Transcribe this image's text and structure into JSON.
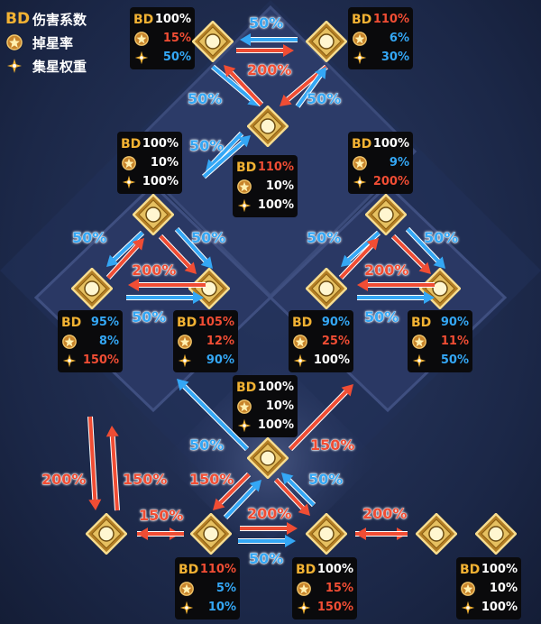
{
  "legend": {
    "bd_label": "BD",
    "damage_label": "伤害系数",
    "drop_label": "掉星率",
    "gather_label": "集星权重"
  },
  "colors": {
    "up": "#f04d34",
    "down": "#34a7f5",
    "neutral": "#ffffff",
    "gold": "#f2b233"
  },
  "cards": {
    "saber_left": {
      "bd": "100%",
      "drop": "15%",
      "gather": "50%"
    },
    "saber_right": {
      "bd": "110%",
      "drop": "6%",
      "gather": "30%"
    },
    "ruler": {
      "bd": "110%",
      "drop": "10%",
      "gather": "100%"
    },
    "saber": {
      "bd": "100%",
      "drop": "10%",
      "gather": "100%"
    },
    "rider": {
      "bd": "100%",
      "drop": "9%",
      "gather": "200%"
    },
    "archer": {
      "bd": "95%",
      "drop": "8%",
      "gather": "150%"
    },
    "lancer": {
      "bd": "105%",
      "drop": "12%",
      "gather": "90%"
    },
    "assassin": {
      "bd": "90%",
      "drop": "25%",
      "gather": "100%"
    },
    "caster": {
      "bd": "90%",
      "drop": "11%",
      "gather": "50%"
    },
    "berserker": {
      "bd": "100%",
      "drop": "10%",
      "gather": "100%"
    },
    "beast": {
      "bd": "110%",
      "drop": "5%",
      "gather": "10%"
    },
    "foreigner": {
      "bd": "100%",
      "drop": "15%",
      "gather": "150%"
    },
    "shielder": {
      "bd": "100%",
      "drop": "10%",
      "gather": "100%"
    }
  },
  "labels": {
    "p50": "50%",
    "p150": "150%",
    "p200": "200%"
  }
}
